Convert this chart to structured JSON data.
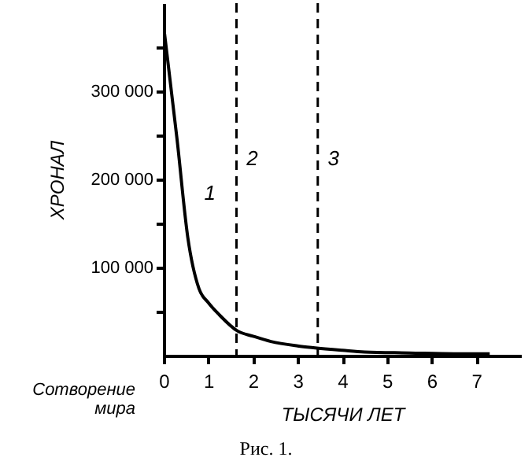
{
  "chart_data": {
    "type": "line",
    "xlabel": "ТЫСЯЧИ ЛЕТ",
    "ylabel": "ХРОНАЛ",
    "series": [
      {
        "name": "1",
        "color": "#000000",
        "x": [
          0.02,
          0.3,
          0.54,
          0.79,
          1.0,
          1.25,
          1.65,
          2.0,
          2.4,
          3.0,
          3.35,
          4.0,
          4.5,
          5.5,
          6.5,
          7.3
        ],
        "values": [
          365000,
          245000,
          134000,
          76000,
          60000,
          46000,
          28000,
          22000,
          16000,
          11000,
          9000,
          6000,
          4000,
          3000,
          2000,
          2000
        ]
      }
    ],
    "xlim": [
      0,
      8
    ],
    "xticks": [
      0,
      1,
      2,
      3,
      4,
      5,
      6,
      7
    ],
    "ylim": [
      0,
      400000
    ],
    "yticks": [
      {
        "value": 50000,
        "label": null
      },
      {
        "value": 100000,
        "label": "100 000"
      },
      {
        "value": 150000,
        "label": null
      },
      {
        "value": 200000,
        "label": "200 000"
      },
      {
        "value": 250000,
        "label": null
      },
      {
        "value": 300000,
        "label": "300 000"
      },
      {
        "value": 350000,
        "label": null
      }
    ],
    "ref_lines": [
      {
        "axis": "x",
        "value": 1.63,
        "label": "2",
        "line_style": "dashed"
      },
      {
        "axis": "x",
        "value": 3.45,
        "label": "3",
        "line_style": "dashed"
      }
    ],
    "annotations": [
      "Сотворение мира",
      "Рис. 1."
    ],
    "grid": false,
    "marker": "none",
    "line_style": "solid"
  }
}
